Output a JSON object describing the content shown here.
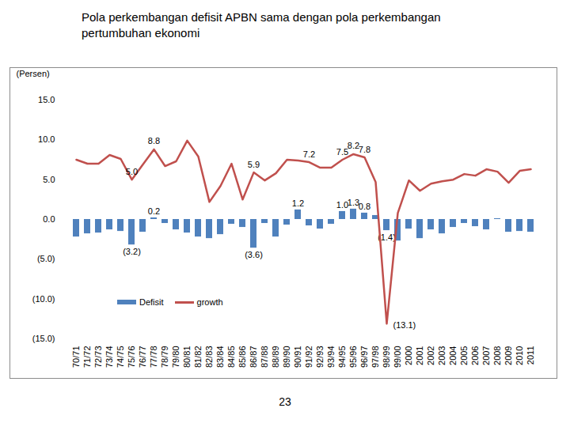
{
  "chart_data": {
    "type": "bar",
    "title": "Pola perkembangan defisit APBN sama dengan pola perkembangan pertumbuhan ekonomi",
    "page_number": "23",
    "y_label": "(Persen)",
    "categories": [
      "70/71",
      "71/72",
      "72/73",
      "73/74",
      "74/75",
      "75/76",
      "76/77",
      "77/78",
      "78/79",
      "79/80",
      "80/81",
      "81/82",
      "82/83",
      "83/84",
      "84/85",
      "85/86",
      "86/87",
      "87/88",
      "88/89",
      "89/90",
      "90/91",
      "91/92",
      "92/93",
      "93/94",
      "94/95",
      "95/96",
      "96/97",
      "97/98",
      "98/99",
      "99/00",
      "2000",
      "2001",
      "2002",
      "2003",
      "2004",
      "2005",
      "2006",
      "2007",
      "2008",
      "2009",
      "2010",
      "2011"
    ],
    "series": [
      {
        "name": "Defisit",
        "type": "bar",
        "color": "#4f81bd",
        "values": [
          -2.2,
          -1.8,
          -1.7,
          -1.3,
          -1.5,
          -3.2,
          -1.6,
          0.2,
          -0.5,
          -1.3,
          -1.7,
          -2.2,
          -2.4,
          -1.9,
          -0.6,
          -1.0,
          -3.6,
          -0.5,
          -2.2,
          -0.7,
          1.2,
          -0.8,
          -1.2,
          -0.6,
          1.0,
          1.3,
          0.8,
          0.5,
          -1.4,
          -2.7,
          -1.2,
          -2.4,
          -1.3,
          -1.8,
          -1.0,
          -0.5,
          -0.9,
          -1.3,
          0.1,
          -1.6,
          -1.5,
          -1.6
        ],
        "value_labels": [
          null,
          null,
          null,
          null,
          null,
          "(3.2)",
          null,
          "0.2",
          null,
          null,
          null,
          null,
          null,
          null,
          null,
          null,
          "(3.6)",
          null,
          null,
          null,
          "1.2",
          null,
          null,
          null,
          "1.0",
          "1.3",
          "0.8",
          null,
          "(1.4)",
          null,
          null,
          null,
          null,
          null,
          null,
          null,
          null,
          null,
          null,
          null,
          null,
          null
        ]
      },
      {
        "name": "growth",
        "type": "line",
        "color": "#c0504d",
        "values": [
          7.5,
          7.0,
          7.0,
          8.1,
          7.6,
          5.0,
          6.9,
          8.8,
          6.7,
          7.3,
          9.9,
          7.9,
          2.2,
          4.2,
          7.0,
          2.5,
          5.9,
          4.9,
          5.8,
          7.5,
          7.4,
          7.2,
          6.5,
          6.5,
          7.5,
          8.2,
          7.8,
          4.7,
          -13.1,
          0.8,
          4.9,
          3.6,
          4.5,
          4.8,
          5.0,
          5.7,
          5.5,
          6.3,
          6.0,
          4.6,
          6.1,
          6.3
        ],
        "value_labels": [
          null,
          null,
          null,
          null,
          null,
          "5.0",
          null,
          "8.8",
          null,
          null,
          null,
          null,
          null,
          null,
          null,
          null,
          "5.9",
          null,
          null,
          null,
          null,
          "7.2",
          null,
          null,
          "7.5",
          "8.2",
          "7.8",
          null,
          "(13.1)",
          null,
          null,
          null,
          null,
          null,
          null,
          null,
          null,
          null,
          null,
          null,
          null,
          null
        ]
      }
    ],
    "ylim": [
      -15,
      15
    ],
    "yticks": [
      {
        "value": 15,
        "label": "15.0"
      },
      {
        "value": 10,
        "label": "10.0"
      },
      {
        "value": 5,
        "label": "5.0"
      },
      {
        "value": 0,
        "label": "0.0"
      },
      {
        "value": -5,
        "label": "(5.0)"
      },
      {
        "value": -10,
        "label": "(10.0)"
      },
      {
        "value": -15,
        "label": "(15.0)"
      }
    ],
    "grid": false,
    "data_labels": true,
    "legend": "lower left"
  }
}
